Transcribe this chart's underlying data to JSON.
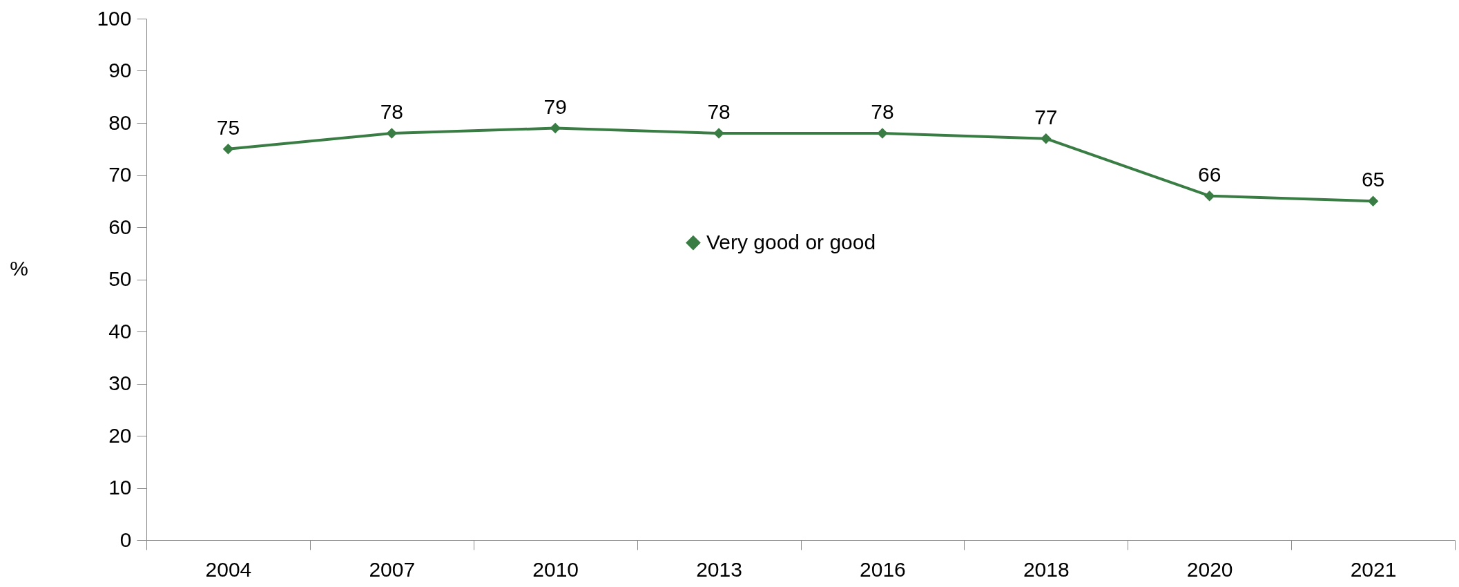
{
  "chart_data": {
    "type": "line",
    "ylabel": "%",
    "categories": [
      "2004",
      "2007",
      "2010",
      "2013",
      "2016",
      "2018",
      "2020",
      "2021"
    ],
    "series": [
      {
        "name": "Very good or good",
        "color": "#3a7d44",
        "values": [
          75,
          78,
          79,
          78,
          78,
          77,
          66,
          65
        ]
      }
    ],
    "ylim": [
      0,
      100
    ],
    "yticks": [
      0,
      10,
      20,
      30,
      40,
      50,
      60,
      70,
      80,
      90,
      100
    ],
    "grid": false,
    "legend": "center",
    "marker": "diamond",
    "line_style": "solid",
    "data_labels": true
  }
}
